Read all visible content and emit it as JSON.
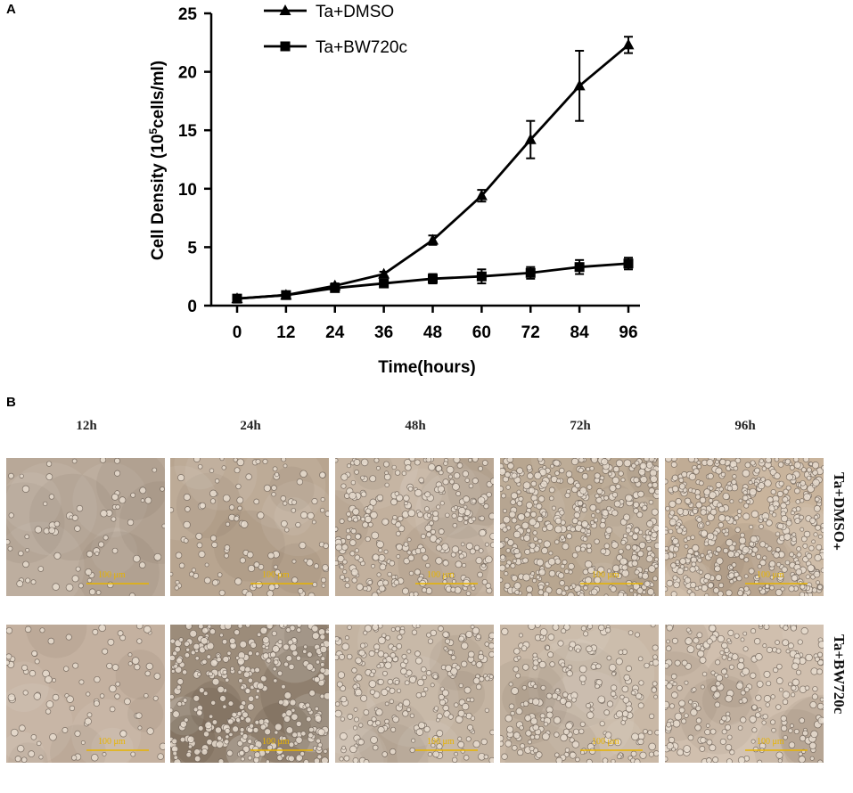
{
  "panel_a_label": "A",
  "panel_b_label": "B",
  "chart_data": {
    "type": "line",
    "xlabel": "Time(hours)",
    "ylabel_main": "Cell Density (10",
    "ylabel_sup": "5",
    "ylabel_end": "cells/ml)",
    "x": [
      0,
      12,
      24,
      36,
      48,
      60,
      72,
      84,
      96
    ],
    "xlim": [
      0,
      96
    ],
    "ylim": [
      0,
      25
    ],
    "xticks": [
      "0",
      "12",
      "24",
      "36",
      "48",
      "60",
      "72",
      "84",
      "96"
    ],
    "yticks": [
      "0",
      "5",
      "10",
      "15",
      "20",
      "25"
    ],
    "legend_position": "top-left",
    "series": [
      {
        "name": "Ta+DMSO",
        "marker": "triangle",
        "values": [
          0.6,
          0.9,
          1.7,
          2.7,
          5.6,
          9.4,
          14.2,
          18.8,
          22.3
        ],
        "errors": [
          0.2,
          0.2,
          0.2,
          0.2,
          0.4,
          0.5,
          1.6,
          3.0,
          0.7
        ]
      },
      {
        "name": "Ta+BW720c",
        "marker": "square",
        "values": [
          0.6,
          0.9,
          1.5,
          1.9,
          2.3,
          2.5,
          2.8,
          3.3,
          3.6
        ],
        "errors": [
          0.2,
          0.2,
          0.2,
          0.2,
          0.4,
          0.6,
          0.5,
          0.6,
          0.5
        ]
      }
    ]
  },
  "micrographs": {
    "columns": [
      "12h",
      "24h",
      "48h",
      "72h",
      "96h"
    ],
    "rows": [
      "Ta+DMSO",
      "Ta+BW720c"
    ],
    "row1_suffix": "₊",
    "scale_bar_label": "100 μm",
    "scale_bar_color": "#e8b400",
    "density_row1": [
      0.08,
      0.18,
      0.55,
      0.85,
      0.95
    ],
    "density_row2": [
      0.12,
      0.65,
      0.45,
      0.4,
      0.45
    ],
    "tint_row1": [
      "#b8a898",
      "#b8a590",
      "#c2b09d",
      "#b8a690",
      "#c9b49c"
    ],
    "tint_row2": [
      "#c4b1a0",
      "#9c8c7a",
      "#c4b4a2",
      "#c9b8a6",
      "#d0bfae"
    ]
  }
}
